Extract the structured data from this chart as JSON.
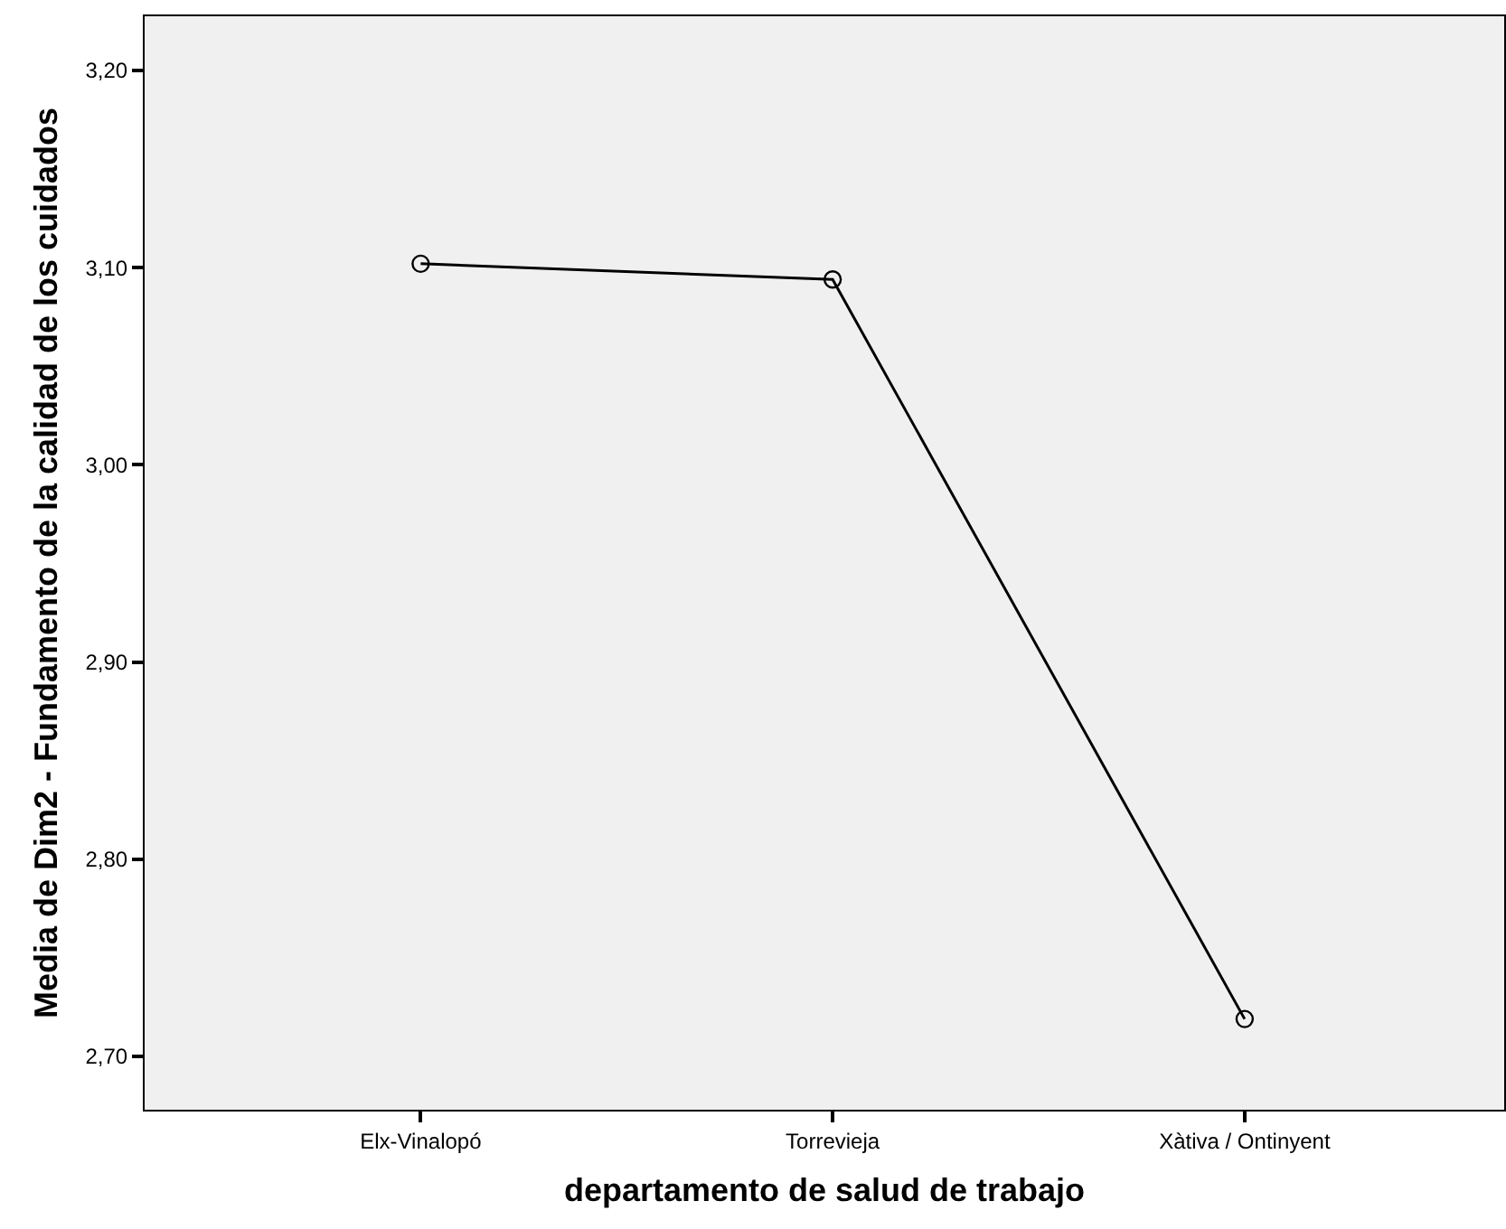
{
  "chart_data": {
    "type": "line",
    "xlabel": "departamento de salud de trabajo",
    "ylabel": "Media de Dim2 - Fundamento de la calidad de los cuidados",
    "categories": [
      "Elx-Vinalopó",
      "Torrevieja",
      "Xàtiva / Ontinyent"
    ],
    "series": [
      {
        "color": "#000000",
        "values": [
          3.102,
          3.094,
          2.719
        ]
      }
    ],
    "ylim": [
      2.673,
      3.2275
    ],
    "yticks": [
      {
        "value": 2.7,
        "label": "2,70"
      },
      {
        "value": 2.8,
        "label": "2,80"
      },
      {
        "value": 2.9,
        "label": "2,90"
      },
      {
        "value": 3.0,
        "label": "3,00"
      },
      {
        "value": 3.1,
        "label": "3,10"
      },
      {
        "value": 3.2,
        "label": "3,20"
      }
    ],
    "grid": false,
    "marker": "circle",
    "line_style": "solid"
  }
}
